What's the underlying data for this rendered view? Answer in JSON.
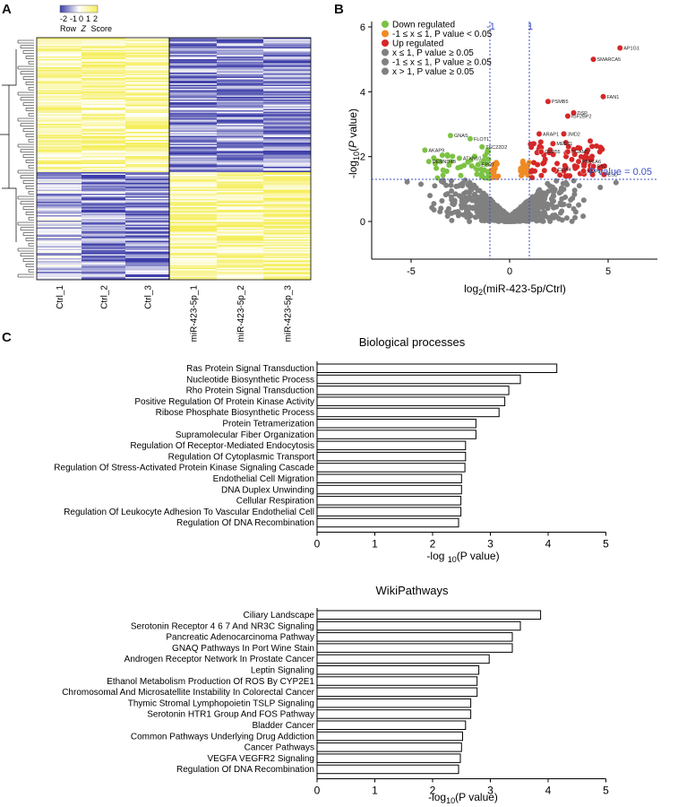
{
  "panels": {
    "a": "A",
    "b": "B",
    "c": "C"
  },
  "heatmap": {
    "legend_ticks": [
      "-2",
      "-1",
      "0",
      "1",
      "2"
    ],
    "legend_title_prefix": "Row",
    "legend_title_z": "Z",
    "legend_title_suffix": "Score",
    "columns": [
      "Ctrl_1",
      "Ctrl_2",
      "Ctrl_3",
      "miR-423-5p_1",
      "miR-423-5p_2",
      "miR-423-5p_3"
    ],
    "colors": {
      "low": "#3c3ca8",
      "mid": "#ffffff",
      "high": "#f5ee5a"
    }
  },
  "volcano": {
    "legend": [
      {
        "label": "Down regulated",
        "color": "#7cc243"
      },
      {
        "label": "-1 ≤ x ≤ 1, P value < 0.05",
        "color": "#f08a24"
      },
      {
        "label": "Up regulated",
        "color": "#d62728"
      },
      {
        "label": "x ≤ 1, P value ≥ 0.05",
        "color": "#808080"
      },
      {
        "label": "-1 ≤ x ≤ 1, P value ≥ 0.05",
        "color": "#808080"
      },
      {
        "label": "x > 1, P value ≥ 0.05",
        "color": "#808080"
      }
    ],
    "xlabel": "log2(miR-423-5p/Ctrl)",
    "ylabel": "-log10(P value)",
    "xticks": [
      -5,
      0,
      5
    ],
    "yticks": [
      0,
      2,
      4,
      6
    ],
    "xlim": [
      -7,
      7.5
    ],
    "ylim": [
      -0.3,
      6
    ],
    "vline_labels": [
      "-1",
      "1"
    ],
    "hline_label": "P value = 0.05",
    "guide_color": "#3a4fc4",
    "labeled_points": [
      {
        "gene": "AP1G1",
        "x": 5.6,
        "y": 5.35,
        "color": "#d62728"
      },
      {
        "gene": "SMARCA5",
        "x": 4.25,
        "y": 5.0,
        "color": "#d62728"
      },
      {
        "gene": "FAN1",
        "x": 4.75,
        "y": 3.85,
        "color": "#d62728"
      },
      {
        "gene": "PSMB5",
        "x": 1.95,
        "y": 3.7,
        "color": "#d62728"
      },
      {
        "gene": "DSP",
        "x": 3.25,
        "y": 3.35,
        "color": "#d62728"
      },
      {
        "gene": "IGF2BP2",
        "x": 2.95,
        "y": 3.25,
        "color": "#d62728"
      },
      {
        "gene": "ARAP1",
        "x": 1.5,
        "y": 2.7,
        "color": "#d62728"
      },
      {
        "gene": "JMD2",
        "x": 2.75,
        "y": 2.7,
        "color": "#d62728"
      },
      {
        "gene": "MED11",
        "x": 2.2,
        "y": 2.4,
        "color": "#d62728"
      },
      {
        "gene": "CEP55",
        "x": 1.6,
        "y": 2.15,
        "color": "#d62728"
      },
      {
        "gene": "PGAM5",
        "x": 2.95,
        "y": 2.15,
        "color": "#d62728"
      },
      {
        "gene": "PNPLA6",
        "x": 3.5,
        "y": 1.85,
        "color": "#d62728"
      },
      {
        "gene": "RYZ",
        "x": 4.25,
        "y": 1.7,
        "color": "#d62728"
      },
      {
        "gene": "NOP56",
        "x": 3.75,
        "y": 1.55,
        "color": "#d62728"
      },
      {
        "gene": "COA4",
        "x": 2.25,
        "y": 1.6,
        "color": "#d62728"
      },
      {
        "gene": "ESD",
        "x": 4.8,
        "y": 1.45,
        "color": "#d62728"
      },
      {
        "gene": "GNAS",
        "x": -3.0,
        "y": 2.65,
        "color": "#7cc243"
      },
      {
        "gene": "FLOT1",
        "x": -2.0,
        "y": 2.55,
        "color": "#7cc243"
      },
      {
        "gene": "TSC22D2",
        "x": -1.4,
        "y": 2.3,
        "color": "#7cc243"
      },
      {
        "gene": "AKAP9",
        "x": -4.3,
        "y": 2.2,
        "color": "#7cc243"
      },
      {
        "gene": "ATXN10",
        "x": -2.55,
        "y": 1.95,
        "color": "#7cc243"
      },
      {
        "gene": "DENND4B",
        "x": -4.1,
        "y": 1.85,
        "color": "#7cc243"
      },
      {
        "gene": "EPRT",
        "x": -1.6,
        "y": 1.75,
        "color": "#7cc243"
      }
    ]
  },
  "bp_chart": {
    "title": "Biological processes",
    "xlabel_prefix": "-log ",
    "xlabel_sub": "10",
    "xlabel_suffix": "(P value)",
    "xlim": [
      0,
      5
    ],
    "xticks": [
      0,
      1,
      2,
      3,
      4,
      5
    ]
  },
  "wp_chart": {
    "title": "WikiPathways",
    "xlabel_prefix": "-log",
    "xlabel_sub": "10",
    "xlabel_suffix": "(P value)",
    "xlim": [
      0,
      5
    ],
    "xticks": [
      0,
      1,
      2,
      3,
      4,
      5
    ]
  },
  "chart_data": [
    {
      "type": "bar",
      "title": "Biological processes",
      "xlabel": "-log 10(P value)",
      "xlim": [
        0,
        5
      ],
      "categories": [
        "Ras Protein Signal Transduction",
        "Nucleotide Biosynthetic Process",
        "Rho Protein Signal Transduction",
        "Positive Regulation Of Protein Kinase Activity",
        "Ribose Phosphate Biosynthetic Process",
        "Protein Tetramerization",
        "Supramolecular Fiber Organization",
        "Regulation Of Receptor-Mediated Endocytosis",
        "Regulation Of Cytoplasmic Transport",
        "Regulation Of Stress-Activated Protein Kinase Signaling Cascade",
        "Endothelial Cell Migration",
        "DNA Duplex Unwinding",
        "Cellular Respiration",
        "Regulation Of Leukocyte Adhesion To Vascular Endothelial Cell",
        "Regulation Of DNA Recombination"
      ],
      "values": [
        4.15,
        3.52,
        3.32,
        3.25,
        3.15,
        2.75,
        2.75,
        2.57,
        2.57,
        2.56,
        2.5,
        2.5,
        2.49,
        2.49,
        2.45
      ]
    },
    {
      "type": "bar",
      "title": "WikiPathways",
      "xlabel": "-log10(P value)",
      "xlim": [
        0,
        5
      ],
      "categories": [
        "Ciliary Landscape",
        "Serotonin Receptor 4 6 7 And NR3C Signaling",
        "Pancreatic Adenocarcinoma Pathway",
        "GNAQ Pathways In Port Wine Stain",
        "Androgen Receptor Network In Prostate Cancer",
        "Leptin Signaling",
        "Ethanol Metabolism Production Of ROS By CYP2E1",
        "Chromosomal And Microsatellite Instability In Colorectal Cancer",
        "Thymic Stromal Lymphopoietin TSLP Signaling",
        "Serotonin HTR1 Group And FOS Pathway",
        "Bladder Cancer",
        "Common Pathways Underlying Drug Addiction",
        "Cancer Pathways",
        "VEGFA VEGFR2 Signaling",
        "Regulation Of DNA Recombination"
      ],
      "values": [
        3.87,
        3.52,
        3.38,
        3.38,
        2.98,
        2.8,
        2.77,
        2.77,
        2.66,
        2.66,
        2.57,
        2.52,
        2.5,
        2.48,
        2.45
      ]
    }
  ]
}
